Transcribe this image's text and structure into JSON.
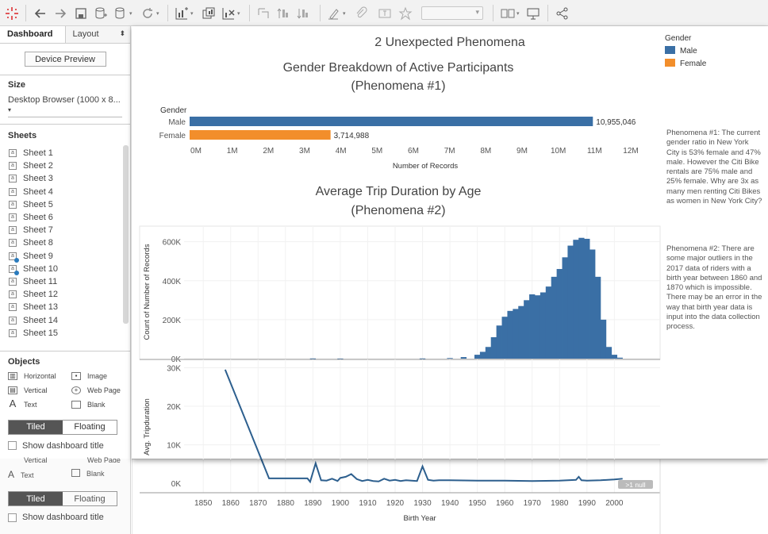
{
  "left_panel": {
    "tabs": {
      "dashboard": "Dashboard",
      "layout": "Layout"
    },
    "device_preview": "Device Preview",
    "size_heading": "Size",
    "size_value": "Desktop Browser (1000 x 8...",
    "sheets_heading": "Sheets",
    "sheets": [
      "Sheet 1",
      "Sheet 2",
      "Sheet 3",
      "Sheet 4",
      "Sheet 5",
      "Sheet 6",
      "Sheet 7",
      "Sheet 8",
      "Sheet 9",
      "Sheet 10",
      "Sheet 11",
      "Sheet 12",
      "Sheet 13",
      "Sheet 14",
      "Sheet 15"
    ],
    "checked_sheets": [
      "Sheet 9",
      "Sheet 10"
    ],
    "objects_heading": "Objects",
    "objects": [
      "Horizontal",
      "Image",
      "Vertical",
      "Web Page",
      "Text",
      "Blank"
    ],
    "tiled": "Tiled",
    "floating": "Floating",
    "show_title": "Show dashboard title"
  },
  "dashboard": {
    "title": "2 Unexpected Phenomena",
    "legend": {
      "title": "Gender",
      "items": [
        {
          "label": "Male",
          "color": "#3a6fa5"
        },
        {
          "label": "Female",
          "color": "#f28e2b"
        }
      ]
    },
    "note1": "Phenomena #1:  The current gender ratio in New York City is 53% female and 47% male. However the Citi Bike rentals are 75% male and 25% female. Why are 3x as many men renting Citi Bikes as women in New York City?",
    "note2": "Phenomena #2: There are some major outliers in the 2017 data of riders with a birth year between 1860 and 1870 which is impossible. There may be an error in the way that birth year data is input into the data collection process.",
    "null_badge": ">1 null"
  },
  "chart_data": [
    {
      "type": "bar",
      "orientation": "horizontal",
      "title": "Gender Breakdown of Active Participants",
      "subtitle": "(Phenomena #1)",
      "row_header": "Gender",
      "categories": [
        "Male",
        "Female"
      ],
      "values": [
        10955046,
        3714988
      ],
      "value_labels": [
        "10,955,046",
        "3,714,988"
      ],
      "colors": [
        "#3a6fa5",
        "#f28e2b"
      ],
      "xlabel": "Number of Records",
      "xlim": [
        0,
        12000000
      ],
      "xticks": [
        "0M",
        "1M",
        "2M",
        "3M",
        "4M",
        "5M",
        "6M",
        "7M",
        "8M",
        "9M",
        "10M",
        "11M",
        "12M"
      ]
    },
    {
      "type": "bar",
      "title": "Average Trip Duration by Age",
      "subtitle": "(Phenomena #2)",
      "ylabel": "Count of Number of Records",
      "yticks": [
        "0K",
        "200K",
        "400K",
        "600K"
      ],
      "ylim": [
        0,
        680000
      ],
      "xlim": [
        1843,
        2008
      ],
      "color": "#3a6fa5",
      "x": [
        1890,
        1900,
        1930,
        1940,
        1945,
        1950,
        1952,
        1954,
        1956,
        1958,
        1960,
        1962,
        1964,
        1966,
        1968,
        1970,
        1972,
        1974,
        1976,
        1978,
        1980,
        1982,
        1984,
        1986,
        1988,
        1990,
        1992,
        1994,
        1996,
        1998,
        2000,
        2002
      ],
      "values": [
        1000,
        500,
        1000,
        3000,
        8000,
        20000,
        35000,
        60000,
        110000,
        170000,
        215000,
        245000,
        255000,
        270000,
        300000,
        330000,
        325000,
        340000,
        370000,
        420000,
        460000,
        520000,
        580000,
        610000,
        620000,
        615000,
        560000,
        420000,
        200000,
        60000,
        20000,
        5000
      ]
    },
    {
      "type": "line",
      "ylabel": "Avg. Tripduration",
      "xlabel": "Birth Year",
      "yticks": [
        "0K",
        "10K",
        "20K",
        "30K"
      ],
      "ylim": [
        -1000,
        30500
      ],
      "xlim": [
        1843,
        2008
      ],
      "xticks": [
        "1850",
        "1860",
        "1870",
        "1880",
        "1890",
        "1900",
        "1910",
        "1920",
        "1930",
        "1940",
        "1950",
        "1960",
        "1970",
        "1980",
        "1990",
        "2000"
      ],
      "color": "#2d5f8e",
      "x": [
        1858,
        1874,
        1886,
        1888,
        1889,
        1891,
        1893,
        1895,
        1897,
        1899,
        1900,
        1902,
        1904,
        1906,
        1908,
        1910,
        1912,
        1914,
        1916,
        1918,
        1920,
        1922,
        1924,
        1926,
        1928,
        1930,
        1932,
        1934,
        1936,
        1940,
        1950,
        1960,
        1970,
        1980,
        1986,
        1987,
        1988,
        1990,
        1995,
        2000,
        2003
      ],
      "values": [
        29500,
        1300,
        1300,
        1300,
        400,
        5200,
        800,
        700,
        1200,
        600,
        1400,
        1700,
        2400,
        1100,
        600,
        900,
        600,
        500,
        1200,
        700,
        900,
        600,
        800,
        700,
        600,
        4400,
        900,
        700,
        800,
        800,
        700,
        700,
        600,
        700,
        900,
        1700,
        800,
        700,
        800,
        1000,
        1200
      ]
    }
  ]
}
